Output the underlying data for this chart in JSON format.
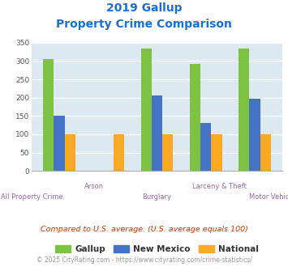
{
  "title_line1": "2019 Gallup",
  "title_line2": "Property Crime Comparison",
  "categories": [
    "All Property Crime",
    "Arson",
    "Burglary",
    "Larceny & Theft",
    "Motor Vehicle Theft"
  ],
  "gallup": [
    305,
    0,
    335,
    293,
    333
  ],
  "new_mexico": [
    150,
    0,
    207,
    130,
    196
  ],
  "national": [
    100,
    100,
    100,
    100,
    100
  ],
  "gallup_color": "#7dc242",
  "new_mexico_color": "#4472c4",
  "national_color": "#faa925",
  "bg_color": "#dce9f0",
  "ylim": [
    0,
    350
  ],
  "yticks": [
    0,
    50,
    100,
    150,
    200,
    250,
    300,
    350
  ],
  "note": "Compared to U.S. average. (U.S. average equals 100)",
  "footer": "© 2025 CityRating.com - https://www.cityrating.com/crime-statistics/",
  "title_color": "#1e6fcc",
  "xticklabel_color": "#9966aa",
  "note_color": "#cc3300",
  "footer_color": "#999999",
  "bar_width": 0.22
}
